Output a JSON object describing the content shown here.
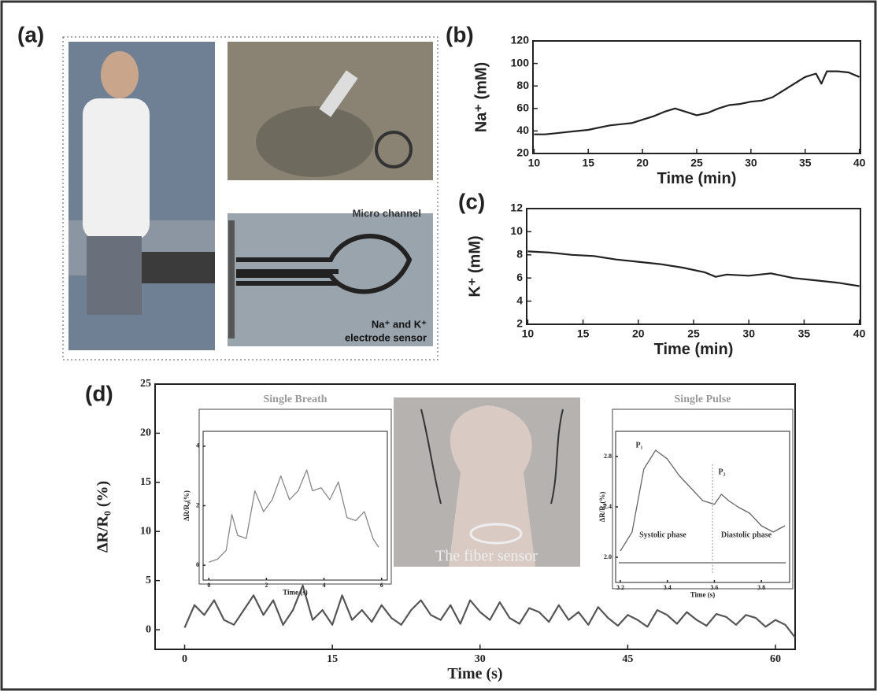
{
  "figure": {
    "panel_labels": [
      "(a)",
      "(b)",
      "(c)",
      "(d)"
    ],
    "photo_labels": [
      "Micro channel",
      "Na⁺ and K⁺",
      "electrode sensor",
      "The fiber sensor"
    ]
  },
  "chart_data": [
    {
      "type": "line",
      "x_label": "Time (min)",
      "y_label": "Na⁺ (mM)",
      "color": "#222222",
      "x": [
        10,
        11,
        12,
        13,
        14,
        15,
        16,
        17,
        18,
        19,
        20,
        21,
        22,
        23,
        24,
        25,
        26,
        27,
        28,
        29,
        30,
        31,
        32,
        33,
        34,
        35,
        36,
        36.5,
        37,
        38,
        39,
        40
      ],
      "values": [
        37,
        37,
        38,
        39,
        40,
        41,
        43,
        45,
        46,
        47,
        50,
        53,
        57,
        60,
        57,
        54,
        56,
        60,
        63,
        64,
        66,
        67,
        70,
        76,
        82,
        88,
        91,
        82,
        93,
        93,
        92,
        88
      ],
      "xlim": [
        9.9,
        40.1
      ],
      "ylim": [
        20,
        120
      ],
      "xticks": [
        10,
        15,
        20,
        25,
        30,
        35,
        40
      ],
      "yticks": [
        20,
        40,
        60,
        80,
        100,
        120
      ]
    },
    {
      "type": "line",
      "x_label": "Time (min)",
      "y_label": "K⁺ (mM)",
      "color": "#222222",
      "x": [
        10,
        12,
        14,
        16,
        18,
        20,
        22,
        24,
        26,
        27,
        28,
        30,
        32,
        34,
        36,
        38,
        40
      ],
      "values": [
        8.3,
        8.2,
        8.0,
        7.9,
        7.6,
        7.4,
        7.2,
        6.9,
        6.5,
        6.1,
        6.3,
        6.2,
        6.4,
        6.0,
        5.8,
        5.6,
        5.3
      ],
      "xlim": [
        9.9,
        40.1
      ],
      "ylim": [
        2,
        12
      ],
      "xticks": [
        10,
        15,
        20,
        25,
        30,
        35,
        40
      ],
      "yticks": [
        2,
        4,
        6,
        8,
        10,
        12
      ]
    },
    {
      "type": "line",
      "x_label": "Time (s)",
      "y_label": "ΔR/R₀ (%)",
      "color": "#555555",
      "x": [
        0,
        1,
        2,
        3,
        4,
        5,
        6,
        7,
        8,
        9,
        10,
        11,
        12,
        13,
        14,
        15,
        16,
        17,
        18,
        19,
        20,
        21,
        22,
        23,
        24,
        25,
        26,
        27,
        28,
        29,
        30,
        31,
        32,
        33,
        34,
        35,
        36,
        37,
        38,
        39,
        40,
        41,
        42,
        43,
        44,
        45,
        46,
        47,
        48,
        49,
        50,
        51,
        52,
        53,
        54,
        55,
        56,
        57,
        58,
        59,
        60,
        61,
        62
      ],
      "values": [
        0.2,
        2.5,
        1.5,
        3,
        1,
        0.5,
        2,
        3.5,
        1.5,
        3,
        0.5,
        2,
        4.5,
        1,
        2,
        0.5,
        3.5,
        1,
        2,
        0.8,
        2.5,
        1.2,
        0.5,
        2,
        3,
        1.5,
        1,
        2.5,
        0.6,
        3,
        1.8,
        1,
        2.8,
        1.2,
        0.6,
        2.2,
        1.8,
        0.8,
        2.5,
        1,
        1.8,
        0.5,
        2.3,
        1.2,
        0.4,
        1.5,
        1,
        0.3,
        2,
        1.5,
        0.6,
        1.8,
        1,
        0.4,
        1.6,
        1.3,
        0.5,
        1.5,
        1.2,
        0.3,
        1,
        0.5,
        -0.8
      ],
      "xlim": [
        -3,
        62
      ],
      "ylim": [
        -2,
        25
      ],
      "xticks": [
        0,
        15,
        30,
        45,
        60
      ],
      "yticks": [
        0,
        5,
        10,
        15,
        20,
        25
      ]
    },
    {
      "type": "line",
      "title": "Single Breath",
      "x_label": "Time (s)",
      "y_label": "ΔR/R₀(%)",
      "color": "#888888",
      "x": [
        0,
        0.3,
        0.6,
        0.8,
        1,
        1.3,
        1.6,
        1.9,
        2.2,
        2.5,
        2.8,
        3.1,
        3.4,
        3.6,
        3.9,
        4.2,
        4.5,
        4.8,
        5.1,
        5.4,
        5.7,
        5.9
      ],
      "values": [
        0.1,
        0.2,
        0.5,
        1.7,
        1,
        0.9,
        2.5,
        1.8,
        2.2,
        3,
        2.2,
        2.5,
        3.2,
        2.5,
        2.6,
        2.2,
        2.8,
        1.6,
        1.5,
        1.8,
        0.9,
        0.6
      ],
      "xlim": [
        -0.2,
        6.2
      ],
      "ylim": [
        -0.5,
        4.5
      ],
      "xticks": [
        0,
        2,
        4,
        6
      ],
      "yticks": [
        0,
        2,
        4
      ]
    },
    {
      "type": "line",
      "title": "Single Pulse",
      "x_label": "Time (s)",
      "y_label": "ΔR/R₀(%)",
      "color": "#666666",
      "x": [
        3.2,
        3.25,
        3.3,
        3.35,
        3.4,
        3.45,
        3.5,
        3.55,
        3.6,
        3.63,
        3.66,
        3.7,
        3.75,
        3.8,
        3.85,
        3.9
      ],
      "values": [
        2.05,
        2.2,
        2.7,
        2.85,
        2.78,
        2.65,
        2.55,
        2.45,
        2.42,
        2.5,
        2.45,
        2.4,
        2.35,
        2.25,
        2.2,
        2.25
      ],
      "xlim": [
        3.18,
        3.92
      ],
      "ylim": [
        1.8,
        3.0
      ],
      "xticks": [
        3.2,
        3.4,
        3.6,
        3.8
      ],
      "yticks": [
        {
          "value": 2,
          "label": "2.0"
        },
        2.4,
        2.8
      ],
      "annotations": [
        "P₁",
        "P₂",
        "Systolic phase",
        "Diastolic phase"
      ]
    }
  ]
}
